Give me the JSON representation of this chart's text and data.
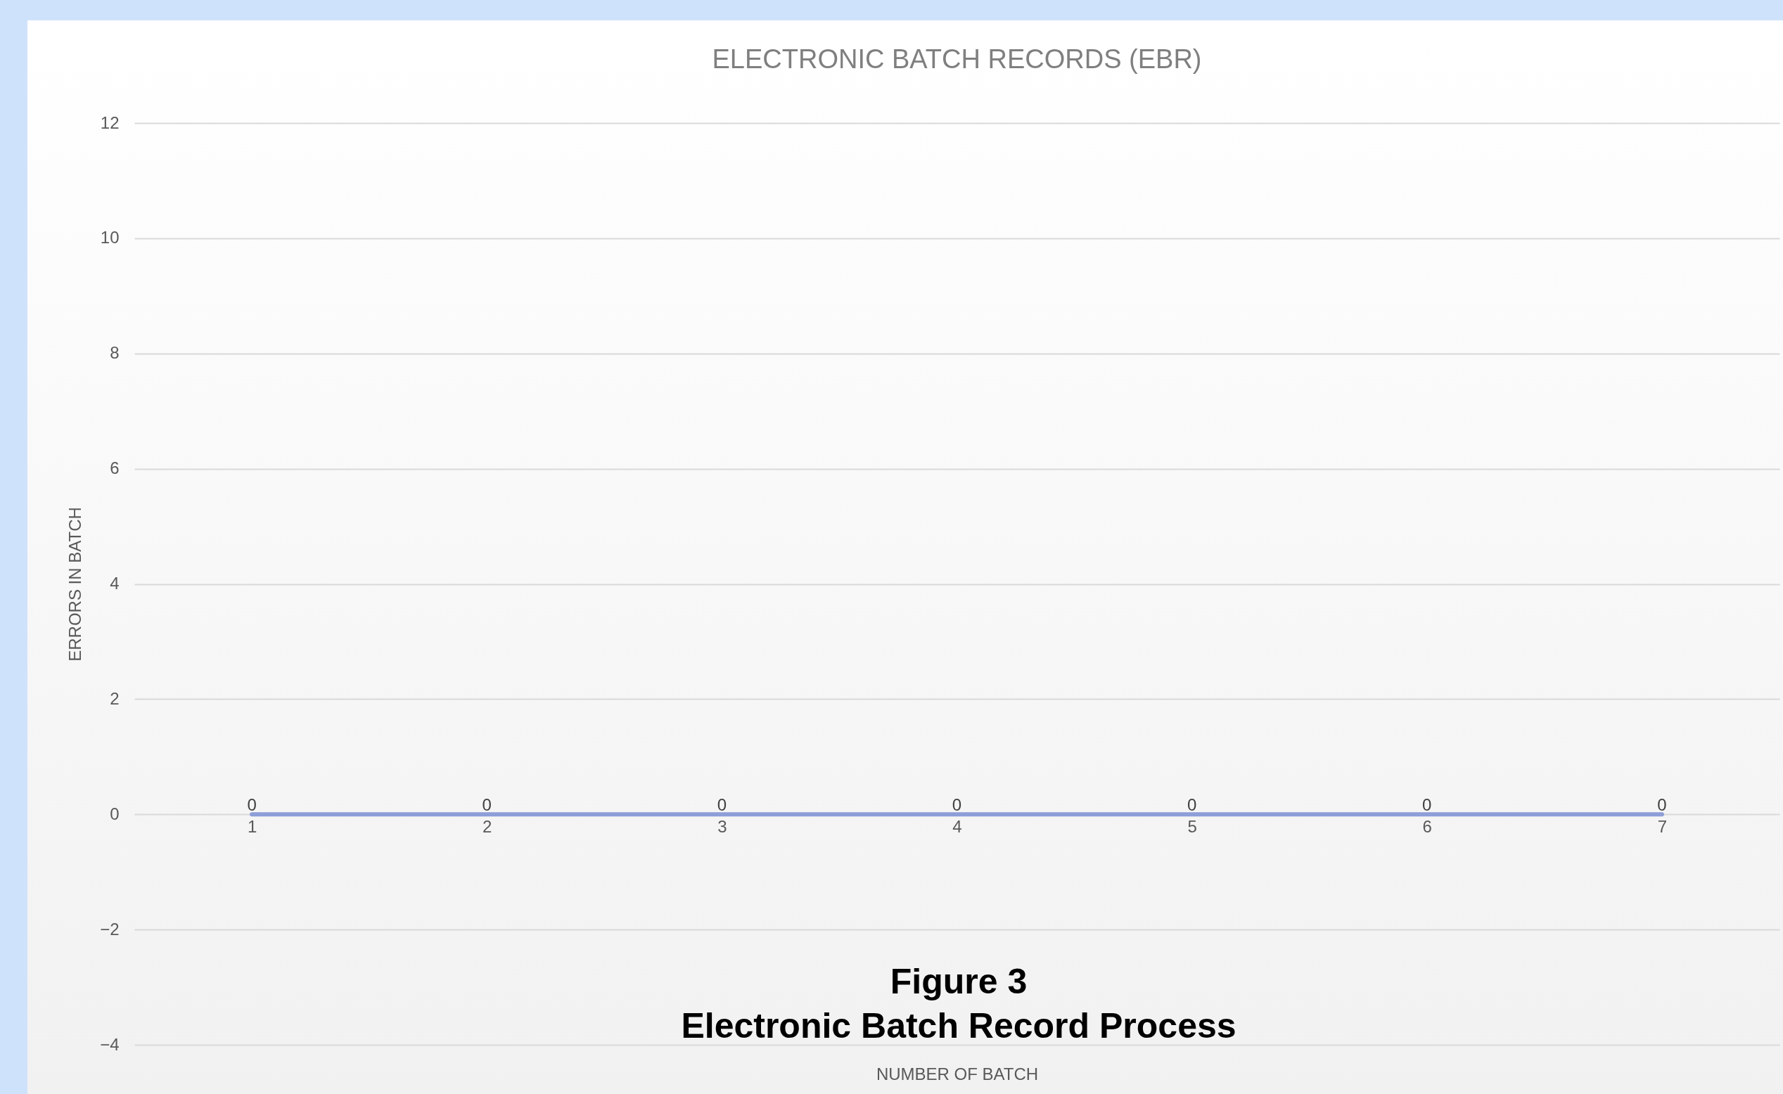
{
  "chart_data": {
    "type": "line",
    "title": "ELECTRONIC BATCH RECORDS (EBR)",
    "xlabel": "NUMBER OF BATCH",
    "ylabel": "ERRORS IN BATCH",
    "categories": [
      "1",
      "2",
      "3",
      "4",
      "5",
      "6",
      "7"
    ],
    "series": [
      {
        "color": "#8e9ed8",
        "values": [
          0,
          0,
          0,
          0,
          0,
          0,
          0
        ]
      }
    ],
    "ylim": [
      -4,
      12
    ],
    "yticks": [
      -4,
      -2,
      0,
      2,
      4,
      6,
      8,
      10,
      12
    ],
    "grid": "y",
    "data_labels": true,
    "marker": "none",
    "annotations": [
      "Figure 3",
      "Electronic Batch Record Process"
    ]
  }
}
